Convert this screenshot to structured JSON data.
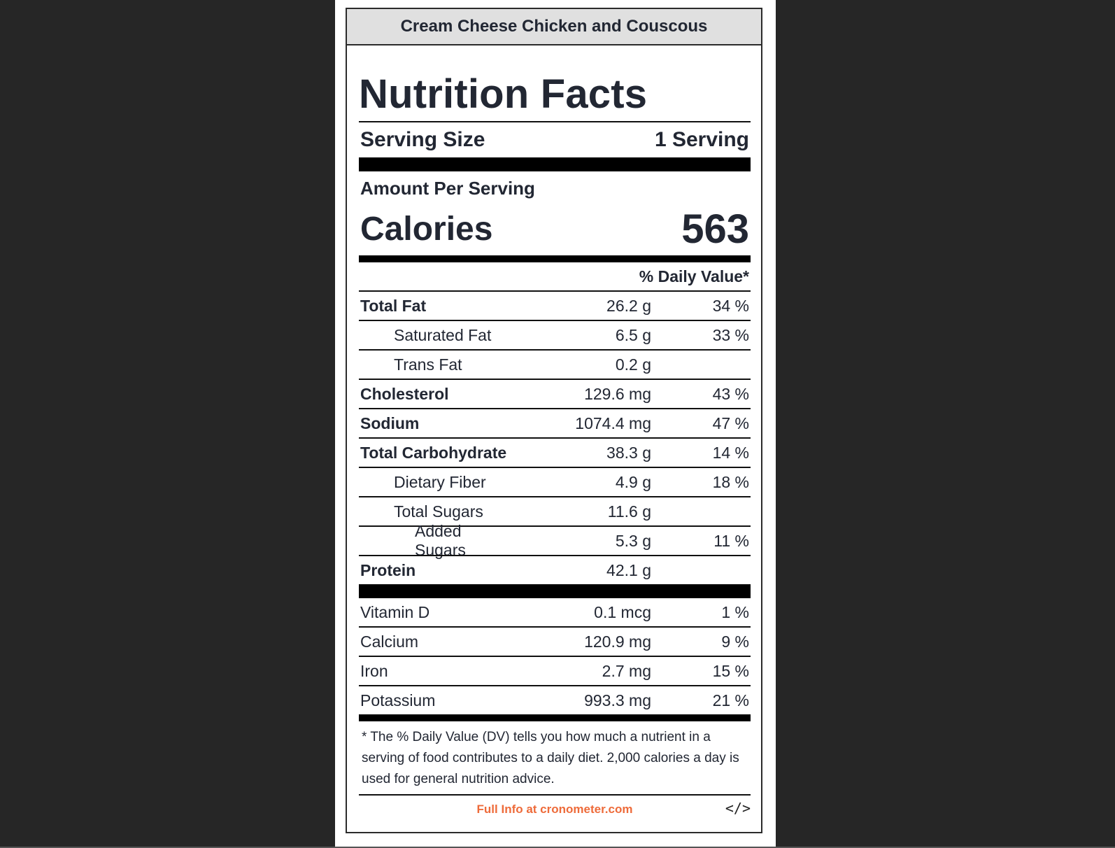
{
  "header": {
    "title": "Cream Cheese Chicken and Couscous"
  },
  "label": {
    "heading": "Nutrition Facts",
    "serving_size_label": "Serving Size",
    "serving_size_value": "1 Serving",
    "amount_per_serving": "Amount Per Serving",
    "calories_label": "Calories",
    "calories_value": "563",
    "daily_value_header": "% Daily Value*"
  },
  "nutrients": [
    {
      "name": "Total Fat",
      "amount": "26.2 g",
      "dv": "34 %"
    },
    {
      "name": "Saturated Fat",
      "amount": "6.5 g",
      "dv": "33 %"
    },
    {
      "name": "Trans Fat",
      "amount": "0.2 g",
      "dv": ""
    },
    {
      "name": "Cholesterol",
      "amount": "129.6 mg",
      "dv": "43 %"
    },
    {
      "name": "Sodium",
      "amount": "1074.4 mg",
      "dv": "47 %"
    },
    {
      "name": "Total Carbohydrate",
      "amount": "38.3 g",
      "dv": "14 %"
    },
    {
      "name": "Dietary Fiber",
      "amount": "4.9 g",
      "dv": "18 %"
    },
    {
      "name": "Total Sugars",
      "amount": "11.6 g",
      "dv": ""
    },
    {
      "name": "Added Sugars",
      "amount": "5.3 g",
      "dv": "11 %"
    },
    {
      "name": "Protein",
      "amount": "42.1 g",
      "dv": ""
    }
  ],
  "micronutrients": [
    {
      "name": "Vitamin D",
      "amount": "0.1 mcg",
      "dv": "1 %"
    },
    {
      "name": "Calcium",
      "amount": "120.9 mg",
      "dv": "9 %"
    },
    {
      "name": "Iron",
      "amount": "2.7 mg",
      "dv": "15 %"
    },
    {
      "name": "Potassium",
      "amount": "993.3 mg",
      "dv": "21 %"
    }
  ],
  "footnote": "* The % Daily Value (DV) tells you how much a nutrient in a serving of food contributes to a daily diet. 2,000 calories a day is used for general nutrition advice.",
  "footer": {
    "link_text": "Full Info at cronometer.com",
    "embed_icon": "</>",
    "link_color": "#ee6b3a"
  }
}
